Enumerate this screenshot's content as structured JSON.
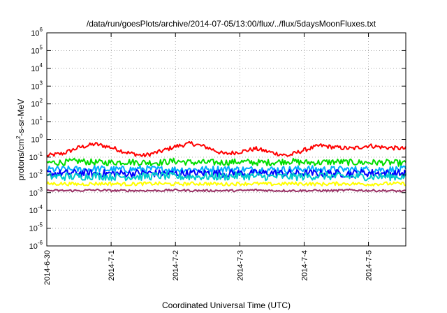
{
  "chart_data": {
    "type": "line",
    "title": "/data/run/goesPlots/archive/2014-07-05/13:00/flux/../flux/5daysMoonFluxes.txt",
    "xlabel": "Coordinated Universal Time (UTC)",
    "ylabel": {
      "base": "protons/cm",
      "sup": "2",
      "rest": "-s-sr-MeV"
    },
    "x_range": [
      "2014-06-30",
      "2014-07-05 14:00"
    ],
    "x_ticks": [
      "2014-6-30",
      "2014-7-1",
      "2014-7-2",
      "2014-7-3",
      "2014-7-4",
      "2014-7-5"
    ],
    "y_scale": "log",
    "ylim": [
      1e-06,
      1000000.0
    ],
    "y_ticks": [
      {
        "base": "10",
        "exp": "-6"
      },
      {
        "base": "10",
        "exp": "-5"
      },
      {
        "base": "10",
        "exp": "-4"
      },
      {
        "base": "10",
        "exp": "-3"
      },
      {
        "base": "10",
        "exp": "-2"
      },
      {
        "base": "10",
        "exp": "-1"
      },
      {
        "base": "10",
        "exp": "0"
      },
      {
        "base": "10",
        "exp": "1"
      },
      {
        "base": "10",
        "exp": "2"
      },
      {
        "base": "10",
        "exp": "3"
      },
      {
        "base": "10",
        "exp": "4"
      },
      {
        "base": "10",
        "exp": "5"
      },
      {
        "base": "10",
        "exp": "6"
      }
    ],
    "grid": true,
    "legend": "none",
    "x_days": [
      0,
      0.25,
      0.5,
      0.75,
      1,
      1.25,
      1.5,
      1.75,
      2,
      2.25,
      2.5,
      2.75,
      3,
      3.25,
      3.5,
      3.75,
      4,
      4.25,
      4.5,
      4.75,
      5,
      5.25,
      5.58
    ],
    "series": [
      {
        "color": "#ff0000",
        "width": 2,
        "noise": 0.12,
        "values": [
          0.12,
          0.16,
          0.35,
          0.55,
          0.35,
          0.18,
          0.12,
          0.2,
          0.4,
          0.6,
          0.35,
          0.15,
          0.2,
          0.3,
          0.18,
          0.12,
          0.25,
          0.45,
          0.35,
          0.3,
          0.45,
          0.35,
          0.3
        ]
      },
      {
        "color": "#00dd00",
        "width": 2,
        "noise": 0.18,
        "values": [
          0.05,
          0.05,
          0.06,
          0.05,
          0.05,
          0.055,
          0.05,
          0.05,
          0.06,
          0.05,
          0.05,
          0.05,
          0.055,
          0.05,
          0.05,
          0.06,
          0.05,
          0.05,
          0.055,
          0.05,
          0.05,
          0.05,
          0.045
        ]
      },
      {
        "color": "#00aaff",
        "width": 2,
        "noise": 0.2,
        "values": [
          0.02,
          0.02,
          0.02,
          0.022,
          0.02,
          0.02,
          0.022,
          0.02,
          0.02,
          0.02,
          0.02,
          0.022,
          0.02,
          0.02,
          0.02,
          0.02,
          0.022,
          0.02,
          0.02,
          0.02,
          0.02,
          0.02,
          0.02
        ]
      },
      {
        "color": "#0000ff",
        "width": 2,
        "noise": 0.22,
        "values": [
          0.012,
          0.012,
          0.013,
          0.012,
          0.012,
          0.012,
          0.013,
          0.012,
          0.012,
          0.012,
          0.013,
          0.012,
          0.012,
          0.012,
          0.013,
          0.012,
          0.012,
          0.012,
          0.012,
          0.012,
          0.013,
          0.012,
          0.012
        ]
      },
      {
        "color": "#00cccc",
        "width": 2,
        "noise": 0.22,
        "values": [
          0.008,
          0.008,
          0.008,
          0.009,
          0.008,
          0.008,
          0.008,
          0.009,
          0.008,
          0.008,
          0.008,
          0.008,
          0.009,
          0.008,
          0.008,
          0.008,
          0.008,
          0.009,
          0.008,
          0.008,
          0.008,
          0.008,
          0.008
        ]
      },
      {
        "color": "#ffff00",
        "width": 2,
        "noise": 0.1,
        "values": [
          0.0032,
          0.0032,
          0.003,
          0.0032,
          0.0032,
          0.003,
          0.0032,
          0.0032,
          0.003,
          0.0032,
          0.0032,
          0.003,
          0.0032,
          0.0032,
          0.003,
          0.0032,
          0.0032,
          0.003,
          0.0032,
          0.0032,
          0.003,
          0.0032,
          0.0032
        ]
      },
      {
        "color": "#993366",
        "width": 2,
        "noise": 0.06,
        "values": [
          0.0013,
          0.0013,
          0.0013,
          0.0014,
          0.0013,
          0.0013,
          0.0013,
          0.0013,
          0.0014,
          0.0013,
          0.0013,
          0.0013,
          0.0013,
          0.0014,
          0.0013,
          0.0013,
          0.0013,
          0.0013,
          0.0013,
          0.0014,
          0.0013,
          0.0013,
          0.0012
        ]
      }
    ]
  }
}
